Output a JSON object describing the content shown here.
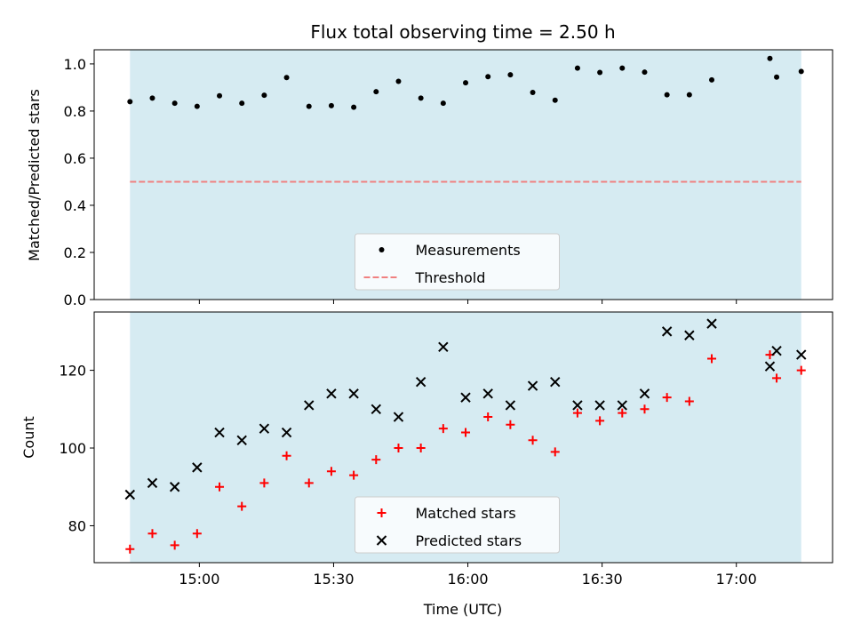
{
  "title": "Flux total observing time = 2.50 h",
  "colors": {
    "band": "#add8e6",
    "band_opacity": 0.5,
    "threshold": "#f08080",
    "measurement": "#000000",
    "matched": "#ff0000",
    "predicted": "#000000"
  },
  "chart_data": [
    {
      "type": "scatter",
      "panel": "top",
      "ylabel": "Matched/Predicted stars",
      "ylim": [
        0,
        1.06
      ],
      "yticks": [
        0.0,
        0.2,
        0.4,
        0.6,
        0.8,
        1.0
      ],
      "ytick_labels": [
        "0.0",
        "0.2",
        "0.4",
        "0.6",
        "0.8",
        "1.0"
      ],
      "xlim_minutes": [
        -23.5,
        141.5
      ],
      "xticks_minutes": [
        0,
        30,
        60,
        90,
        120
      ],
      "shaded_span_minutes": [
        -15.5,
        134.5
      ],
      "legend_location": "lower center",
      "series": [
        {
          "name": "Measurements",
          "marker": "dot",
          "x_minutes": [
            -15.5,
            -10.5,
            -5.5,
            -0.5,
            4.5,
            9.5,
            14.5,
            19.5,
            24.5,
            29.5,
            34.5,
            39.5,
            44.5,
            49.5,
            54.5,
            59.5,
            64.5,
            69.5,
            74.5,
            79.5,
            84.5,
            89.5,
            94.5,
            99.5,
            104.5,
            109.5,
            114.5,
            127.5,
            129,
            134.5
          ],
          "y": [
            0.84,
            0.855,
            0.833,
            0.82,
            0.865,
            0.833,
            0.867,
            0.942,
            0.82,
            0.823,
            0.816,
            0.882,
            0.926,
            0.855,
            0.833,
            0.92,
            0.946,
            0.954,
            0.879,
            0.846,
            0.982,
            0.964,
            0.982,
            0.965,
            0.869,
            0.869,
            0.932,
            1.023,
            0.944,
            0.968
          ]
        }
      ],
      "threshold": {
        "name": "Threshold",
        "value": 0.5
      }
    },
    {
      "type": "scatter",
      "panel": "bottom",
      "xlabel": "Time (UTC)",
      "ylabel": "Count",
      "ylim": [
        70.5,
        135
      ],
      "yticks": [
        80,
        100,
        120
      ],
      "ytick_labels": [
        "80",
        "100",
        "120"
      ],
      "xlim_minutes": [
        -23.5,
        141.5
      ],
      "xticks_minutes": [
        0,
        30,
        60,
        90,
        120
      ],
      "xtick_labels": [
        "15:00",
        "15:30",
        "16:00",
        "16:30",
        "17:00"
      ],
      "shaded_span_minutes": [
        -15.5,
        134.5
      ],
      "legend_location": "lower center",
      "series": [
        {
          "name": "Matched stars",
          "marker": "plus",
          "x_minutes": [
            -15.5,
            -10.5,
            -5.5,
            -0.5,
            4.5,
            9.5,
            14.5,
            19.5,
            24.5,
            29.5,
            34.5,
            39.5,
            44.5,
            49.5,
            54.5,
            59.5,
            64.5,
            69.5,
            74.5,
            79.5,
            84.5,
            89.5,
            94.5,
            99.5,
            104.5,
            109.5,
            114.5,
            127.5,
            129,
            134.5
          ],
          "y": [
            74,
            78,
            75,
            78,
            90,
            85,
            91,
            98,
            91,
            94,
            93,
            97,
            100,
            100,
            105,
            104,
            108,
            106,
            102,
            99,
            109,
            107,
            109,
            110,
            113,
            112,
            123,
            124,
            118,
            120
          ]
        },
        {
          "name": "Predicted stars",
          "marker": "x",
          "x_minutes": [
            -15.5,
            -10.5,
            -5.5,
            -0.5,
            4.5,
            9.5,
            14.5,
            19.5,
            24.5,
            29.5,
            34.5,
            39.5,
            44.5,
            49.5,
            54.5,
            59.5,
            64.5,
            69.5,
            74.5,
            79.5,
            84.5,
            89.5,
            94.5,
            99.5,
            104.5,
            109.5,
            114.5,
            127.5,
            129,
            134.5
          ],
          "y": [
            88,
            91,
            90,
            95,
            104,
            102,
            105,
            104,
            111,
            114,
            114,
            110,
            108,
            117,
            126,
            113,
            114,
            111,
            116,
            117,
            111,
            111,
            111,
            114,
            130,
            129,
            132,
            121,
            125,
            124
          ]
        }
      ]
    }
  ]
}
